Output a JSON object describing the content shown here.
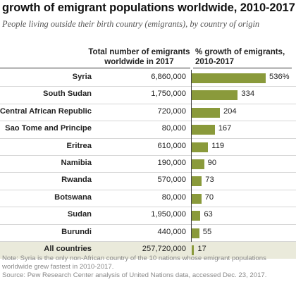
{
  "header": {
    "title": "growth of emigrant populations worldwide, 2010-2017",
    "subtitle": "People living outside their birth country (emigrants), by country of origin"
  },
  "columns": {
    "total_line1": "Total number of emigrants",
    "total_line2": "worldwide in 2017",
    "growth_line1": "% growth of emigrants,",
    "growth_line2": "2010-2017"
  },
  "chart_data": {
    "type": "bar",
    "orientation": "horizontal",
    "title": "growth of emigrant populations worldwide, 2010-2017",
    "categories": [
      "Syria",
      "South Sudan",
      "Central African Republic",
      "Sao Tome and Principe",
      "Eritrea",
      "Namibia",
      "Rwanda",
      "Botswana",
      "Sudan",
      "Burundi",
      "All countries"
    ],
    "emigrants_2017": [
      "6,860,000",
      "1,750,000",
      "720,000",
      "80,000",
      "610,000",
      "190,000",
      "570,000",
      "80,000",
      "1,950,000",
      "440,000",
      "257,720,000"
    ],
    "series": [
      {
        "values": [
          536,
          334,
          204,
          167,
          119,
          90,
          73,
          70,
          63,
          55,
          17
        ]
      }
    ],
    "value_labels": [
      "536%",
      "334",
      "204",
      "167",
      "119",
      "90",
      "73",
      "70",
      "63",
      "55",
      "17"
    ],
    "highlight_row": "All countries",
    "colors": {
      "bar": "#8a9a3b",
      "total_row_bg": "#eaeadb"
    }
  },
  "footer": {
    "note": "Note: Syria is the only non-African country of the 10 nations whose emigrant populations worldwide grew fastest in 2010-2017.",
    "source": "Source: Pew Research Center analysis of United Nations data, accessed Dec. 23, 2017."
  }
}
